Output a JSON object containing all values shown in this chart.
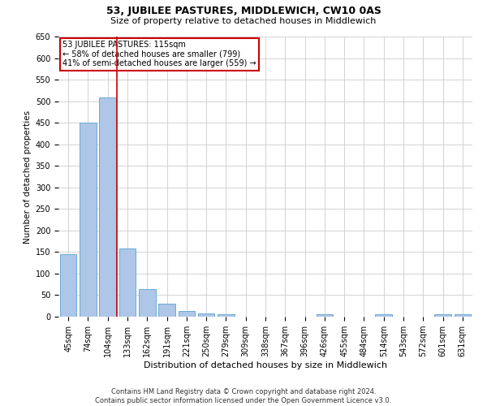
{
  "title": "53, JUBILEE PASTURES, MIDDLEWICH, CW10 0AS",
  "subtitle": "Size of property relative to detached houses in Middlewich",
  "xlabel": "Distribution of detached houses by size in Middlewich",
  "ylabel": "Number of detached properties",
  "footer_line1": "Contains HM Land Registry data © Crown copyright and database right 2024.",
  "footer_line2": "Contains public sector information licensed under the Open Government Licence v3.0.",
  "annotation_line1": "53 JUBILEE PASTURES: 115sqm",
  "annotation_line2": "← 58% of detached houses are smaller (799)",
  "annotation_line3": "41% of semi-detached houses are larger (559) →",
  "property_size_sqm": 115,
  "bin_labels": [
    "45sqm",
    "74sqm",
    "104sqm",
    "133sqm",
    "162sqm",
    "191sqm",
    "221sqm",
    "250sqm",
    "279sqm",
    "309sqm",
    "338sqm",
    "367sqm",
    "396sqm",
    "426sqm",
    "455sqm",
    "484sqm",
    "514sqm",
    "543sqm",
    "572sqm",
    "601sqm",
    "631sqm"
  ],
  "bin_values": [
    145,
    450,
    508,
    158,
    65,
    30,
    13,
    8,
    5,
    0,
    0,
    0,
    0,
    5,
    0,
    0,
    5,
    0,
    0,
    5,
    5
  ],
  "bar_color": "#aec6e8",
  "bar_edge_color": "#6aaad4",
  "red_line_color": "#cc0000",
  "annotation_box_color": "#cc0000",
  "grid_color": "#cccccc",
  "background_color": "#ffffff",
  "ylim": [
    0,
    650
  ],
  "yticks": [
    0,
    50,
    100,
    150,
    200,
    250,
    300,
    350,
    400,
    450,
    500,
    550,
    600,
    650
  ],
  "title_fontsize": 9,
  "subtitle_fontsize": 8,
  "ylabel_fontsize": 7.5,
  "xlabel_fontsize": 8,
  "tick_fontsize": 7,
  "annot_fontsize": 7,
  "footer_fontsize": 6
}
